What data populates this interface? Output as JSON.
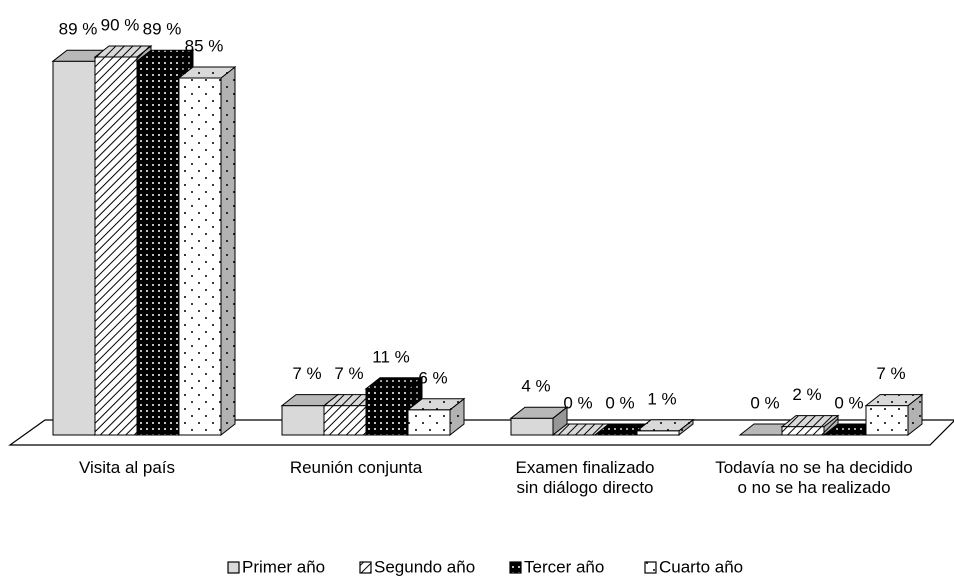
{
  "chart_data": {
    "type": "bar3d",
    "categories": [
      "Visita al país",
      "Reunión conjunta",
      "Examen finalizado\nsin diálogo directo",
      "Todavía no se ha decidido\no no se ha realizado"
    ],
    "series": [
      {
        "name": "Primer año",
        "color": "#d9d9d9",
        "values": [
          89,
          7,
          4,
          0
        ],
        "value_labels": [
          "89 %",
          "7 %",
          "4 %",
          "0 %"
        ]
      },
      {
        "name": "Segundo año",
        "color": "#ffffff",
        "values": [
          90,
          7,
          0,
          2
        ],
        "value_labels": [
          "90 %",
          "7 %",
          "0 %",
          "2 %"
        ]
      },
      {
        "name": "Tercer año",
        "color": "#000000",
        "values": [
          89,
          11,
          0,
          0
        ],
        "value_labels": [
          "89 %",
          "11 %",
          "0 %",
          "0 %"
        ]
      },
      {
        "name": "Cuarto año",
        "color": "#ffffff",
        "values": [
          85,
          6,
          1,
          7
        ],
        "value_labels": [
          "85 %",
          "6 %",
          "1 %",
          "7 %"
        ]
      }
    ],
    "legend": "bottom"
  }
}
